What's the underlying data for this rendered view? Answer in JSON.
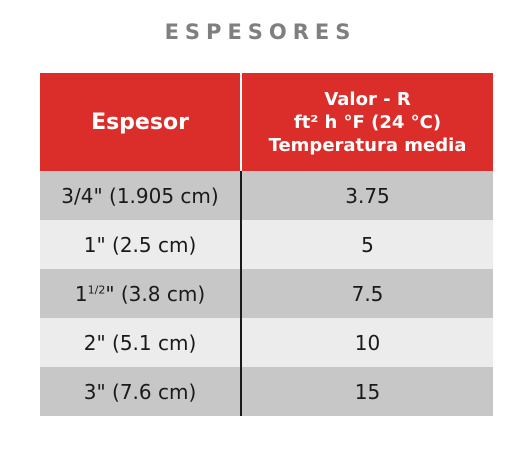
{
  "title": "ESPESORES",
  "header": {
    "col1": "Espesor",
    "col2_line1": "Valor - R",
    "col2_line2": "ft² h °F (24 °C)",
    "col2_line3": "Temperatura media"
  },
  "rows": [
    {
      "espesor": "3/4\" (1.905 cm)",
      "valor": "3.75"
    },
    {
      "espesor": "1\" (2.5 cm)",
      "valor": "5"
    },
    {
      "espesor_prefix": "1",
      "espesor_sup": "1/2",
      "espesor_suffix": "\" (3.8 cm)",
      "valor": "7.5"
    },
    {
      "espesor": "2\" (5.1 cm)",
      "valor": "10"
    },
    {
      "espesor": "3\" (7.6 cm)",
      "valor": "15"
    }
  ]
}
